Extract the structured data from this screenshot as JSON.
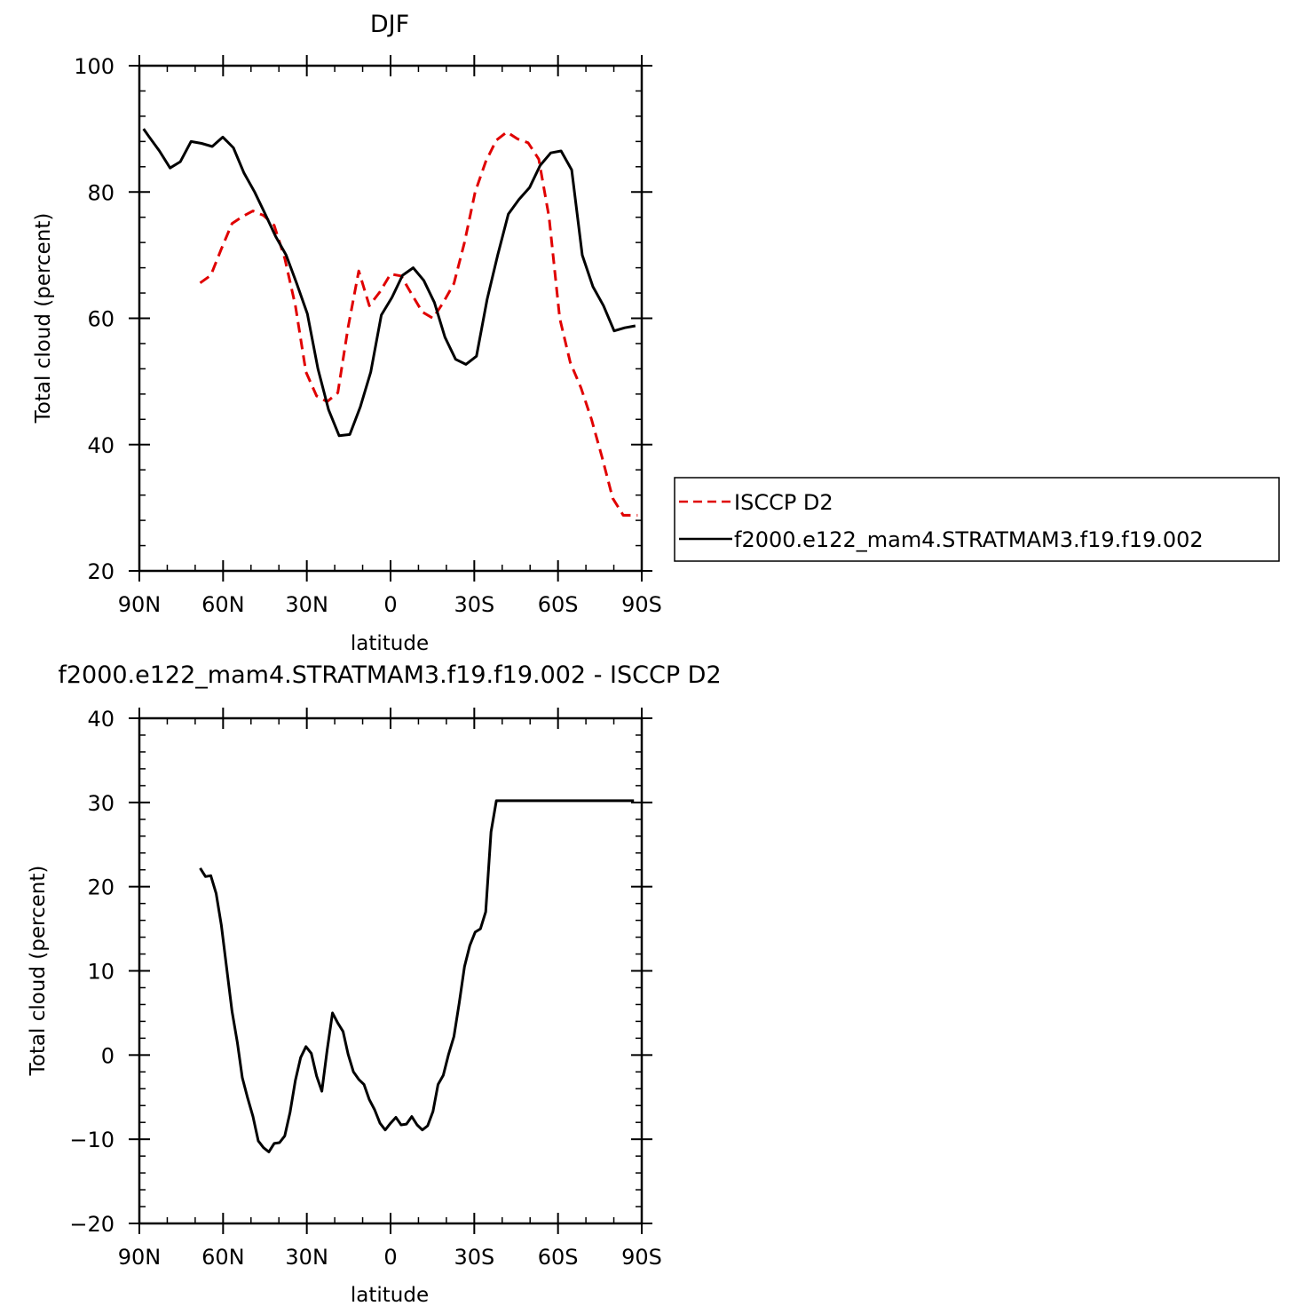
{
  "chart_data": [
    {
      "type": "line",
      "title": "DJF",
      "xlabel": "latitude",
      "ylabel": "Total cloud (percent)",
      "xlim": [
        90,
        -90
      ],
      "ylim": [
        20,
        100
      ],
      "xticks": [
        90,
        60,
        30,
        0,
        -30,
        -60,
        -90
      ],
      "xtick_labels": [
        "90N",
        "60N",
        "30N",
        "0",
        "30S",
        "60S",
        "90S"
      ],
      "yticks": [
        20,
        40,
        60,
        80,
        100
      ],
      "ytick_labels": [
        "20",
        "40",
        "60",
        "80",
        "100"
      ],
      "legend": {
        "position": "right",
        "entries": [
          "ISCCP D2",
          "f2000.e122_mam4.STRATMAM3.f19.f19.002"
        ]
      },
      "series": [
        {
          "name": "ISCCP D2",
          "color": "#e00000",
          "dash": "dashed",
          "x": [
            68.2,
            64.4,
            60.6,
            56.8,
            53.1,
            49.3,
            45.5,
            41.7,
            37.9,
            34.1,
            30.3,
            26.5,
            22.7,
            18.9,
            15.2,
            11.4,
            7.6,
            3.8,
            0.0,
            -3.8,
            -7.6,
            -11.4,
            -15.2,
            -18.9,
            -22.7,
            -26.5,
            -30.3,
            -34.1,
            -37.9,
            -41.7,
            -45.5,
            -49.3,
            -53.1,
            -56.8,
            -60.6,
            -64.4,
            -68.2,
            -72.0,
            -75.8,
            -79.6,
            -83.4,
            -87.2,
            -88.5
          ],
          "y": [
            65.6,
            66.8,
            71.0,
            75.0,
            76.1,
            77.0,
            76.3,
            74.7,
            69.5,
            62.0,
            51.5,
            47.7,
            46.8,
            48.2,
            58.6,
            67.5,
            62.0,
            64.2,
            67.0,
            66.7,
            63.8,
            61.0,
            60.0,
            62.5,
            65.5,
            72.0,
            80.0,
            84.8,
            88.2,
            89.5,
            88.4,
            87.8,
            85.2,
            76.0,
            60.0,
            53.0,
            49.0,
            44.0,
            38.0,
            31.5,
            28.8,
            28.8,
            28.8
          ]
        },
        {
          "name": "f2000.e122_mam4.STRATMAM3.f19.f19.002",
          "color": "#000000",
          "dash": "solid",
          "x": [
            88.5,
            86.6,
            82.8,
            79.0,
            75.3,
            71.5,
            67.7,
            63.9,
            60.1,
            56.3,
            52.5,
            48.7,
            44.9,
            41.2,
            37.4,
            33.6,
            29.8,
            26.0,
            22.2,
            18.4,
            14.6,
            10.8,
            7.1,
            3.3,
            -0.5,
            -4.3,
            -8.1,
            -11.9,
            -15.7,
            -19.5,
            -23.3,
            -27.0,
            -30.8,
            -34.6,
            -38.4,
            -42.2,
            -46.0,
            -49.8,
            -53.6,
            -57.4,
            -61.1,
            -64.9,
            -68.7,
            -72.5,
            -76.3,
            -80.1,
            -83.9,
            -87.7
          ],
          "y": [
            90.0,
            88.8,
            86.5,
            83.8,
            84.8,
            88.0,
            87.7,
            87.2,
            88.7,
            87.0,
            83.0,
            80.0,
            76.5,
            73.0,
            70.0,
            65.5,
            60.7,
            52.0,
            45.5,
            41.4,
            41.6,
            46.0,
            51.5,
            60.5,
            63.3,
            66.8,
            68.0,
            66.0,
            62.5,
            57.0,
            53.5,
            52.7,
            54.0,
            63.0,
            70.0,
            76.5,
            78.8,
            80.7,
            84.2,
            86.2,
            86.5,
            83.5,
            70.0,
            65.0,
            62.0,
            58.0,
            58.5,
            58.8
          ]
        }
      ]
    },
    {
      "type": "line",
      "title": "f2000.e122_mam4.STRATMAM3.f19.f19.002 - ISCCP D2",
      "xlabel": "latitude",
      "ylabel": "Total cloud (percent)",
      "xlim": [
        90,
        -90
      ],
      "ylim": [
        -20,
        40
      ],
      "xticks": [
        90,
        60,
        30,
        0,
        -30,
        -60,
        -90
      ],
      "xtick_labels": [
        "90N",
        "60N",
        "30N",
        "0",
        "30S",
        "60S",
        "90S"
      ],
      "yticks": [
        -20,
        -10,
        0,
        10,
        20,
        30,
        40
      ],
      "ytick_labels": [
        "−20",
        "−10",
        "0",
        "10",
        "20",
        "30",
        "40"
      ],
      "series": [
        {
          "color": "#000000",
          "dash": "solid",
          "x": [
            68.2,
            66.3,
            64.4,
            62.5,
            60.6,
            58.7,
            56.8,
            54.9,
            53.1,
            51.2,
            49.3,
            47.4,
            45.5,
            43.6,
            41.7,
            39.8,
            37.9,
            36.0,
            34.1,
            32.2,
            30.3,
            28.4,
            26.5,
            24.6,
            22.7,
            20.8,
            18.9,
            17.0,
            15.2,
            13.3,
            11.4,
            9.5,
            7.6,
            5.7,
            3.8,
            1.9,
            0.0,
            -1.9,
            -3.8,
            -5.7,
            -7.6,
            -9.5,
            -11.4,
            -13.3,
            -15.2,
            -17.0,
            -18.9,
            -20.8,
            -22.7,
            -24.6,
            -26.5,
            -28.4,
            -30.3,
            -32.2,
            -34.1,
            -36.0,
            -37.9,
            -39.8,
            -41.7,
            -43.6,
            -45.5,
            -47.4,
            -49.3,
            -51.2,
            -53.1,
            -55.0,
            -56.8,
            -58.7,
            -60.6,
            -62.5,
            -64.4,
            -66.3,
            -68.2,
            -70.1,
            -72.0,
            -73.9,
            -75.8,
            -77.7,
            -79.6,
            -81.5,
            -83.4,
            -85.3,
            -87.2
          ],
          "y": [
            22.2,
            21.2,
            21.3,
            19.2,
            15.4,
            10.3,
            5.2,
            1.5,
            -2.7,
            -5.1,
            -7.3,
            -10.2,
            -11.0,
            -11.5,
            -10.5,
            -10.4,
            -9.6,
            -6.8,
            -3.0,
            -0.3,
            1.0,
            0.2,
            -2.5,
            -4.3,
            0.6,
            5.0,
            3.8,
            2.8,
            0.1,
            -2.0,
            -2.9,
            -3.5,
            -5.3,
            -6.5,
            -8.1,
            -8.9,
            -8.1,
            -7.4,
            -8.3,
            -8.2,
            -7.3,
            -8.3,
            -8.9,
            -8.4,
            -6.7,
            -3.5,
            -2.4,
            0.1,
            2.2,
            6.2,
            10.5,
            13.0,
            14.6,
            15.0,
            17.0,
            26.5,
            30.2,
            30.2,
            30.2,
            30.2,
            30.2,
            30.2,
            30.2,
            30.2,
            30.2,
            30.2,
            30.2,
            30.2,
            30.2,
            30.2,
            30.2,
            30.2,
            30.2,
            30.2,
            30.2,
            30.2,
            30.2,
            30.2,
            30.2,
            30.2,
            30.2,
            30.2,
            30.2
          ]
        }
      ]
    }
  ]
}
